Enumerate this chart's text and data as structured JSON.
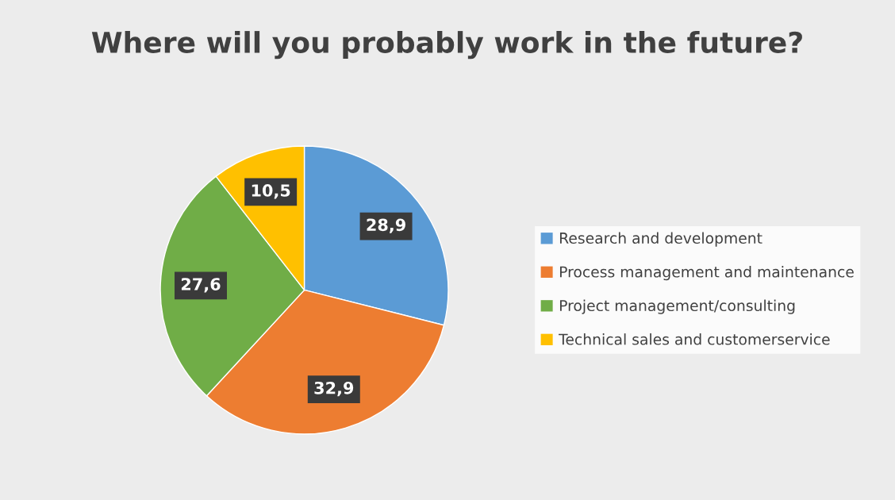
{
  "chart_data": {
    "type": "pie",
    "title": "Where will you probably work in the future?",
    "categories": [
      "Research and development",
      "Process management and maintenance",
      "Project management/consulting",
      "Technical sales and customerservice"
    ],
    "values": [
      28.9,
      32.9,
      27.6,
      10.5
    ],
    "value_labels": [
      "28,9",
      "32,9",
      "27,6",
      "10,5"
    ],
    "colors": [
      "#5b9bd5",
      "#ed7d31",
      "#70ad47",
      "#ffc000"
    ],
    "legend": "right"
  }
}
